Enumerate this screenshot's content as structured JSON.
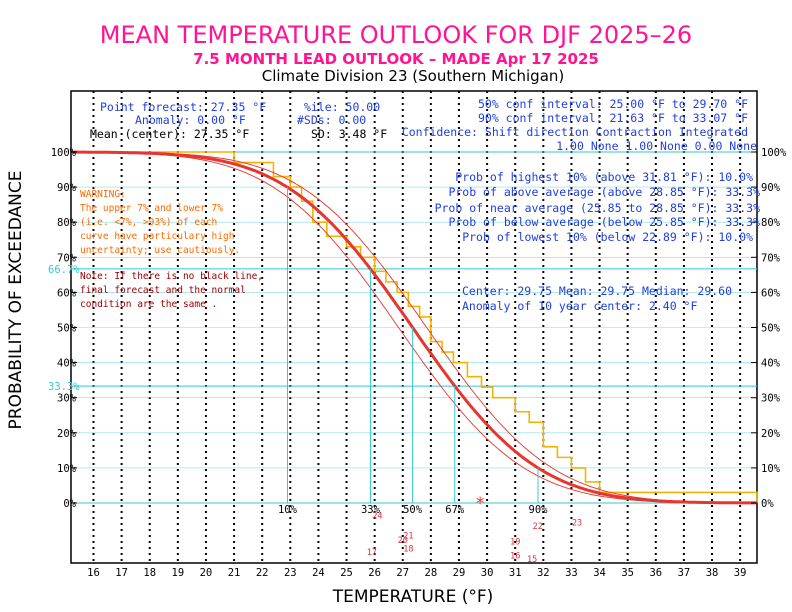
{
  "titles": {
    "main": "MEAN TEMPERATURE OUTLOOK FOR DJF 2025–26",
    "sub": "7.5 MONTH LEAD OUTLOOK – MADE Apr 17 2025",
    "division": "Climate Division 23 (Southern Michigan)"
  },
  "stats_left": {
    "line1a": "Point forecast: 27.35 °F",
    "line1b": "%ile:  50.00",
    "line2a": "Anomaly:   0.00 °F",
    "line2b": "#SDs:  0.00",
    "line3a": "Mean (center): 27.35 °F",
    "line3b": "SD:  3.48 °F"
  },
  "stats_right": {
    "ci50": "50% conf interval: 25.00 °F to 29.70 °F",
    "ci90": "90% conf interval: 21.63 °F to 33.07 °F",
    "conf_header": "Confidence: Shift direction   Contraction  Integrated",
    "conf_values": "1.00 None      1.00 None  0.00 None"
  },
  "probabilities": {
    "highest": "Prob of highest 10% (above 31.81 °F): 10.0%",
    "above": "Prob of above average (above 28.85 °F): 33.3%",
    "near": "Prob of near average (25.85 to 28.85 °F): 33.3%",
    "below": "Prob of below average (below 25.85 °F): 33.3%",
    "lowest": "Prob of lowest 10% (below 22.89 °F): 10.0%"
  },
  "climatology": {
    "line1": "Center: 29.75  Mean: 29.75  Median: 29.60",
    "line2": "Anomaly of 10 year center: 2.40 °F"
  },
  "warning": {
    "l1": "WARNING:",
    "l2": "The upper 7% and lower 7%",
    "l3": "(i.e. <7%, >93%) of each",
    "l4": "curve have particulary high",
    "l5": "uncertainty; use cautiously."
  },
  "note": {
    "l1": "Note: If there is no black line,",
    "l2": "final forecast and  the normal",
    "l3": "condition are the same ."
  },
  "axes": {
    "xlabel": "TEMPERATURE (°F)",
    "ylabel": "PROBABILITY OF EXCEEDANCE"
  },
  "colors": {
    "forecast": "#e8352e",
    "bounds": "#e8352e",
    "climo_step": "#f2b400",
    "gridline": "#000000",
    "cyan": "#36c8d2",
    "blue_text": "#1f3fe0",
    "title": "#ff1493"
  },
  "chart_data": {
    "type": "line",
    "x_ticks": [
      16,
      17,
      18,
      19,
      20,
      21,
      22,
      23,
      24,
      25,
      26,
      27,
      28,
      29,
      30,
      31,
      32,
      33,
      34,
      35,
      36,
      37,
      38,
      39
    ],
    "y_ticks_left": [
      "0%",
      "10%",
      "20%",
      "30%",
      "40%",
      "50%",
      "60%",
      "70%",
      "80%",
      "90%",
      "100%"
    ],
    "y_ticks_right": [
      "0%",
      "10%",
      "20%",
      "30%",
      "40%",
      "50%",
      "60%",
      "70%",
      "80%",
      "90%",
      "100%"
    ],
    "xlim": [
      15.2,
      39.6
    ],
    "ylim": [
      0,
      100
    ],
    "forecast_curve": {
      "mean": 27.35,
      "sd": 3.48
    },
    "conf_bounds": [
      {
        "mean": 26.85,
        "sd": 3.48
      },
      {
        "mean": 27.85,
        "sd": 3.48
      }
    ],
    "climatology_step": {
      "x": [
        15.2,
        20,
        21,
        22,
        22.4,
        23,
        23.4,
        23.8,
        24.3,
        25,
        25.5,
        26,
        26.4,
        26.8,
        27.2,
        27.6,
        28,
        28.4,
        28.8,
        29.3,
        29.8,
        30.2,
        31,
        31.5,
        32,
        32.5,
        33,
        33.5,
        34,
        39.6
      ],
      "y": [
        100,
        100,
        97,
        97,
        93,
        90,
        86,
        80,
        76,
        73,
        70,
        66,
        63,
        60,
        56,
        53,
        46,
        43,
        40,
        36,
        33,
        30,
        26,
        23,
        16,
        13,
        10,
        6,
        3,
        0
      ]
    },
    "percentile_markers": [
      {
        "label": "10%",
        "x": 22.9
      },
      {
        "label": "33%",
        "x": 25.85
      },
      {
        "label": "50%",
        "x": 27.35
      },
      {
        "label": "67%",
        "x": 28.85
      },
      {
        "label": "90%",
        "x": 31.81
      }
    ],
    "cyan_levels": [
      {
        "label": "66.7%",
        "y": 66.7
      },
      {
        "label": "33.3%",
        "y": 33.3
      }
    ],
    "rank_labels": [
      {
        "label": "24",
        "x": 26.1,
        "y": -3.5
      },
      {
        "label": "22",
        "x": 31.8,
        "y": -6.5
      },
      {
        "label": "23",
        "x": 33.2,
        "y": -5.5
      },
      {
        "label": "21",
        "x": 27.2,
        "y": -9.3
      },
      {
        "label": "20",
        "x": 27.0,
        "y": -10.5
      },
      {
        "label": "19",
        "x": 31.0,
        "y": -11.0
      },
      {
        "label": "18",
        "x": 27.2,
        "y": -13.0
      },
      {
        "label": "17",
        "x": 25.9,
        "y": -14.0
      },
      {
        "label": "16",
        "x": 31.0,
        "y": -15.0
      },
      {
        "label": "15",
        "x": 31.6,
        "y": -16.0
      }
    ],
    "center_marker": {
      "symbol": "*",
      "x": 29.75,
      "y": 0
    }
  }
}
